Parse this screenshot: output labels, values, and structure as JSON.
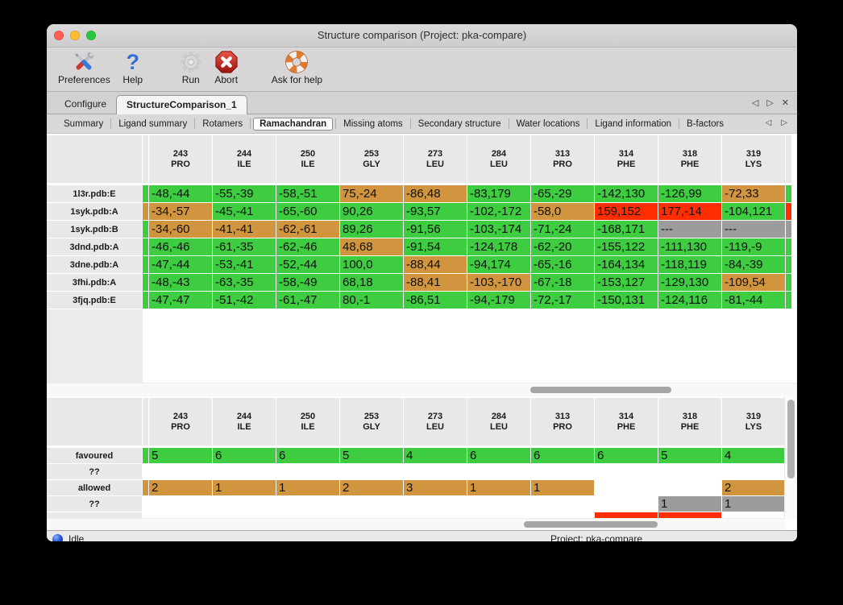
{
  "window": {
    "title": "Structure comparison (Project: pka-compare)"
  },
  "toolbar": {
    "items": [
      {
        "label": "Preferences",
        "icon": "tools-icon"
      },
      {
        "label": "Help",
        "icon": "question-icon"
      },
      {
        "label": "Run",
        "icon": "gear-icon"
      },
      {
        "label": "Abort",
        "icon": "stop-icon"
      },
      {
        "label": "Ask for help",
        "icon": "lifebuoy-icon"
      }
    ]
  },
  "tabs": {
    "items": [
      "Configure",
      "StructureComparison_1"
    ],
    "selected": "StructureComparison_1"
  },
  "subtabs": {
    "items": [
      "Summary",
      "Ligand summary",
      "Rotamers",
      "Ramachandran",
      "Missing atoms",
      "Secondary structure",
      "Water locations",
      "Ligand information",
      "B-factors"
    ],
    "selected": "Ramachandran"
  },
  "legend_colors": {
    "favoured": "#3ecc41",
    "allowed": "#d2953f",
    "outlier": "#ff2d00",
    "missing": "#9c9c9c"
  },
  "upper_table": {
    "columns": [
      {
        "num": "243",
        "res": "PRO"
      },
      {
        "num": "244",
        "res": "ILE"
      },
      {
        "num": "250",
        "res": "ILE"
      },
      {
        "num": "253",
        "res": "GLY"
      },
      {
        "num": "273",
        "res": "LEU"
      },
      {
        "num": "284",
        "res": "LEU"
      },
      {
        "num": "313",
        "res": "PRO"
      },
      {
        "num": "314",
        "res": "PHE"
      },
      {
        "num": "318",
        "res": "PHE"
      },
      {
        "num": "319",
        "res": "LYS"
      }
    ],
    "rows": [
      {
        "label": "1l3r.pdb:E",
        "edge_left": "f",
        "edge_right": "f",
        "cells": [
          [
            "-48,-44",
            "f"
          ],
          [
            "-55,-39",
            "f"
          ],
          [
            "-58,-51",
            "f"
          ],
          [
            "75,-24",
            "a"
          ],
          [
            "-86,48",
            "a"
          ],
          [
            "-83,179",
            "f"
          ],
          [
            "-65,-29",
            "f"
          ],
          [
            "-142,130",
            "f"
          ],
          [
            "-126,99",
            "f"
          ],
          [
            "-72,33",
            "a"
          ]
        ]
      },
      {
        "label": "1syk.pdb:A",
        "edge_left": "a",
        "edge_right": "o",
        "cells": [
          [
            "-34,-57",
            "a"
          ],
          [
            "-45,-41",
            "f"
          ],
          [
            "-65,-60",
            "f"
          ],
          [
            "90,26",
            "f"
          ],
          [
            "-93,57",
            "f"
          ],
          [
            "-102,-172",
            "f"
          ],
          [
            "-58,0",
            "a"
          ],
          [
            "159,152",
            "o"
          ],
          [
            "177,-14",
            "o"
          ],
          [
            "-104,121",
            "f"
          ]
        ]
      },
      {
        "label": "1syk.pdb:B",
        "edge_left": "f",
        "edge_right": "m",
        "cells": [
          [
            "-34,-60",
            "a"
          ],
          [
            "-41,-41",
            "a"
          ],
          [
            "-62,-61",
            "a"
          ],
          [
            "89,26",
            "f"
          ],
          [
            "-91,56",
            "f"
          ],
          [
            "-103,-174",
            "f"
          ],
          [
            "-71,-24",
            "f"
          ],
          [
            "-168,171",
            "f"
          ],
          [
            "---",
            "m"
          ],
          [
            "---",
            "m"
          ]
        ]
      },
      {
        "label": "3dnd.pdb:A",
        "edge_left": "f",
        "edge_right": "f",
        "cells": [
          [
            "-46,-46",
            "f"
          ],
          [
            "-61,-35",
            "f"
          ],
          [
            "-62,-46",
            "f"
          ],
          [
            "48,68",
            "a"
          ],
          [
            "-91,54",
            "f"
          ],
          [
            "-124,178",
            "f"
          ],
          [
            "-62,-20",
            "f"
          ],
          [
            "-155,122",
            "f"
          ],
          [
            "-111,130",
            "f"
          ],
          [
            "-119,-9",
            "f"
          ]
        ]
      },
      {
        "label": "3dne.pdb:A",
        "edge_left": "f",
        "edge_right": "f",
        "cells": [
          [
            "-47,-44",
            "f"
          ],
          [
            "-53,-41",
            "f"
          ],
          [
            "-52,-44",
            "f"
          ],
          [
            "100,0",
            "f"
          ],
          [
            "-88,44",
            "a"
          ],
          [
            "-94,174",
            "f"
          ],
          [
            "-65,-16",
            "f"
          ],
          [
            "-164,134",
            "f"
          ],
          [
            "-118,119",
            "f"
          ],
          [
            "-84,-39",
            "f"
          ]
        ]
      },
      {
        "label": "3fhi.pdb:A",
        "edge_left": "f",
        "edge_right": "f",
        "cells": [
          [
            "-48,-43",
            "f"
          ],
          [
            "-63,-35",
            "f"
          ],
          [
            "-58,-49",
            "f"
          ],
          [
            "68,18",
            "f"
          ],
          [
            "-88,41",
            "a"
          ],
          [
            "-103,-170",
            "a"
          ],
          [
            "-67,-18",
            "f"
          ],
          [
            "-153,127",
            "f"
          ],
          [
            "-129,130",
            "f"
          ],
          [
            "-109,54",
            "a"
          ]
        ]
      },
      {
        "label": "3fjq.pdb:E",
        "edge_left": "f",
        "edge_right": "f",
        "cells": [
          [
            "-47,-47",
            "f"
          ],
          [
            "-51,-42",
            "f"
          ],
          [
            "-61,-47",
            "f"
          ],
          [
            "80,-1",
            "f"
          ],
          [
            "-86,51",
            "f"
          ],
          [
            "-94,-179",
            "f"
          ],
          [
            "-72,-17",
            "f"
          ],
          [
            "-150,131",
            "f"
          ],
          [
            "-124,116",
            "f"
          ],
          [
            "-81,-44",
            "f"
          ]
        ]
      }
    ]
  },
  "lower_table": {
    "columns": [
      {
        "num": "243",
        "res": "PRO"
      },
      {
        "num": "244",
        "res": "ILE"
      },
      {
        "num": "250",
        "res": "ILE"
      },
      {
        "num": "253",
        "res": "GLY"
      },
      {
        "num": "273",
        "res": "LEU"
      },
      {
        "num": "284",
        "res": "LEU"
      },
      {
        "num": "313",
        "res": "PRO"
      },
      {
        "num": "314",
        "res": "PHE"
      },
      {
        "num": "318",
        "res": "PHE"
      },
      {
        "num": "319",
        "res": "LYS"
      }
    ],
    "rows": [
      {
        "label": "favoured",
        "edge_left": "f",
        "edge_right": "f",
        "cells": [
          [
            "5",
            "f"
          ],
          [
            "6",
            "f"
          ],
          [
            "6",
            "f"
          ],
          [
            "5",
            "f"
          ],
          [
            "4",
            "f"
          ],
          [
            "6",
            "f"
          ],
          [
            "6",
            "f"
          ],
          [
            "6",
            "f"
          ],
          [
            "5",
            "f"
          ],
          [
            "4",
            "f"
          ]
        ]
      },
      {
        "label": "??",
        "edge_left": "n",
        "edge_right": "n",
        "cells": [
          [
            "",
            "n"
          ],
          [
            "",
            "n"
          ],
          [
            "",
            "n"
          ],
          [
            "",
            "n"
          ],
          [
            "",
            "n"
          ],
          [
            "",
            "n"
          ],
          [
            "",
            "n"
          ],
          [
            "",
            "n"
          ],
          [
            "",
            "n"
          ],
          [
            "",
            "n"
          ]
        ]
      },
      {
        "label": "allowed",
        "edge_left": "a",
        "edge_right": "a",
        "cells": [
          [
            "2",
            "a"
          ],
          [
            "1",
            "a"
          ],
          [
            "1",
            "a"
          ],
          [
            "2",
            "a"
          ],
          [
            "3",
            "a"
          ],
          [
            "1",
            "a"
          ],
          [
            "1",
            "a"
          ],
          [
            "",
            "n"
          ],
          [
            "",
            "n"
          ],
          [
            "2",
            "a"
          ]
        ]
      },
      {
        "label": "??",
        "edge_left": "n",
        "edge_right": "m",
        "cells": [
          [
            "",
            "n"
          ],
          [
            "",
            "n"
          ],
          [
            "",
            "n"
          ],
          [
            "",
            "n"
          ],
          [
            "",
            "n"
          ],
          [
            "",
            "n"
          ],
          [
            "",
            "n"
          ],
          [
            "",
            "n"
          ],
          [
            "1",
            "m"
          ],
          [
            "1",
            "m"
          ]
        ]
      },
      {
        "label": "",
        "partial": true,
        "edge_left": "n",
        "edge_right": "n",
        "cells": [
          [
            "",
            "n"
          ],
          [
            "",
            "n"
          ],
          [
            "",
            "n"
          ],
          [
            "",
            "n"
          ],
          [
            "",
            "n"
          ],
          [
            "",
            "n"
          ],
          [
            "",
            "n"
          ],
          [
            "",
            "o"
          ],
          [
            "",
            "o"
          ],
          [
            "",
            "n"
          ]
        ]
      }
    ]
  },
  "status_bar": {
    "left": "Idle",
    "right": "Project: pka-compare"
  }
}
